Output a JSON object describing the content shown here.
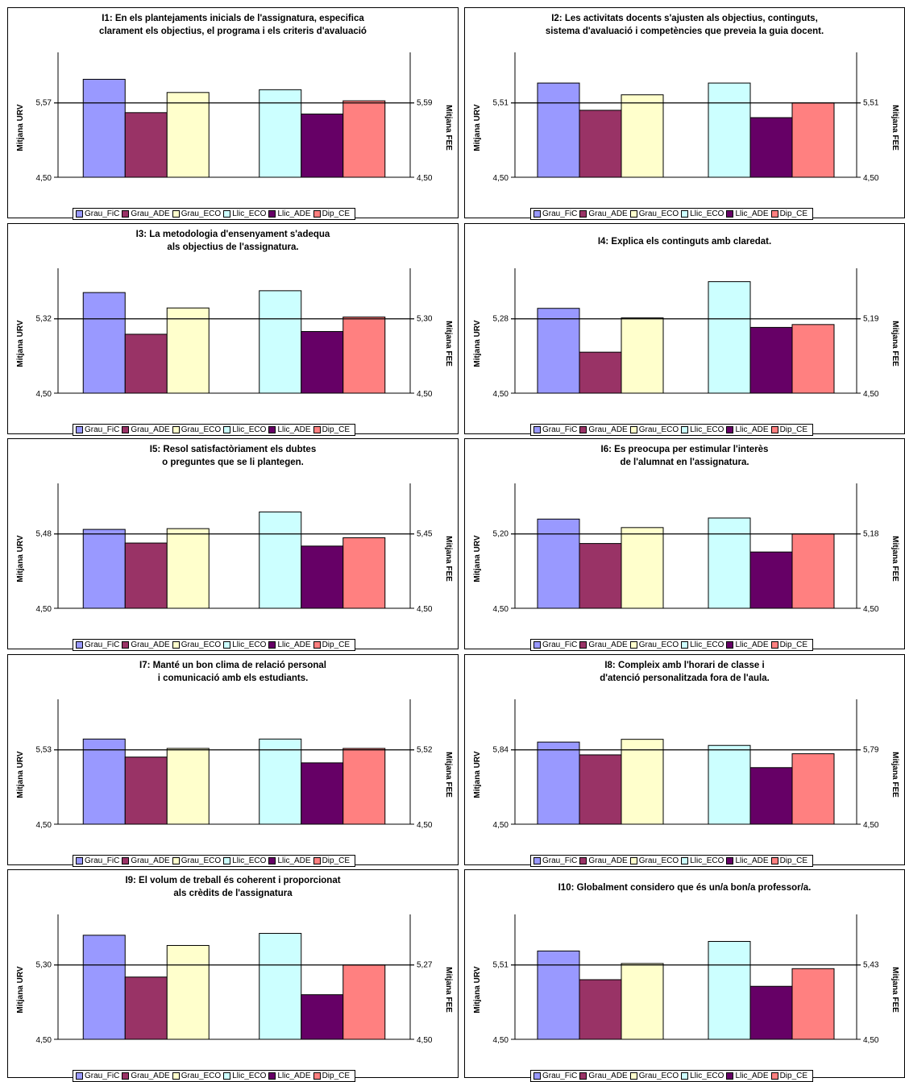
{
  "legend_entries": [
    "Grau_FiC",
    "Grau_ADE",
    "Grau_ECO",
    "Llic_ECO",
    "Llic_ADE",
    "Dip_CE"
  ],
  "series_colors": [
    "#9999ff",
    "#993366",
    "#ffffcc",
    "#ccffff",
    "#660066",
    "#ff8080"
  ],
  "chart_data": [
    {
      "type": "bar",
      "title_lines": [
        "I1: En els plantejaments inicials de l'assignatura, especifica",
        "clarament els objectius, el programa i els criteris d'avaluació"
      ],
      "ylabel": "Mitjana URV",
      "y2label": "Mitjana FEE",
      "ymin": 4.5,
      "ymin_label": "4,50",
      "y2min_label": "4,50",
      "ref_label": "5,57",
      "ref2_label": "5,59",
      "ref_value": 5.57,
      "groups": [
        [
          "Grau_FiC",
          "Grau_ADE",
          "Grau_ECO"
        ],
        [
          "Llic_ECO",
          "Llic_ADE",
          "Dip_CE"
        ]
      ],
      "values": [
        5.91,
        5.43,
        5.72,
        5.76,
        5.41,
        5.6
      ]
    },
    {
      "type": "bar",
      "title_lines": [
        "I2: Les activitats docents s'ajusten als objectius, continguts,",
        "sistema d'avaluació i competències que preveia la guia docent."
      ],
      "ylabel": "Mitjana URV",
      "y2label": "Mitjana FEE",
      "ymin": 4.5,
      "ymin_label": "4,50",
      "y2min_label": "4,50",
      "ref_label": "5,51",
      "ref2_label": "5,51",
      "ref_value": 5.51,
      "groups": [
        [
          "Grau_FiC",
          "Grau_ADE",
          "Grau_ECO"
        ],
        [
          "Llic_ECO",
          "Llic_ADE",
          "Dip_CE"
        ]
      ],
      "values": [
        5.78,
        5.41,
        5.62,
        5.78,
        5.31,
        5.51
      ]
    },
    {
      "type": "bar",
      "title_lines": [
        "I3: La metodologia d'ensenyament s'adequa",
        "als objectius de l'assignatura."
      ],
      "ylabel": "Mitjana URV",
      "y2label": "Mitjana FEE",
      "ymin": 4.5,
      "ymin_label": "4,50",
      "y2min_label": "4,50",
      "ref_label": "5,32",
      "ref2_label": "5,30",
      "ref_value": 5.32,
      "groups": [
        [
          "Grau_FiC",
          "Grau_ADE",
          "Grau_ECO"
        ],
        [
          "Llic_ECO",
          "Llic_ADE",
          "Dip_CE"
        ]
      ],
      "values": [
        5.61,
        5.15,
        5.44,
        5.63,
        5.18,
        5.34
      ]
    },
    {
      "type": "bar",
      "title_lines": [
        "I4: Explica els continguts amb claredat."
      ],
      "ylabel": "Mitjana URV",
      "y2label": "Mitjana FEE",
      "ymin": 4.5,
      "ymin_label": "4,50",
      "y2min_label": "4,50",
      "ref_label": "5,28",
      "ref2_label": "5,19",
      "ref_value": 5.28,
      "groups": [
        [
          "Grau_FiC",
          "Grau_ADE",
          "Grau_ECO"
        ],
        [
          "Llic_ECO",
          "Llic_ADE",
          "Dip_CE"
        ]
      ],
      "values": [
        5.39,
        4.93,
        5.29,
        5.67,
        5.19,
        5.22
      ]
    },
    {
      "type": "bar",
      "title_lines": [
        "I5: Resol satisfactòriament els dubtes",
        "o preguntes que se li plantegen."
      ],
      "ylabel": "Mitjana URV",
      "y2label": "Mitjana FEE",
      "ymin": 4.5,
      "ymin_label": "4,50",
      "y2min_label": "4,50",
      "ref_label": "5,48",
      "ref2_label": "5,45",
      "ref_value": 5.48,
      "groups": [
        [
          "Grau_FiC",
          "Grau_ADE",
          "Grau_ECO"
        ],
        [
          "Llic_ECO",
          "Llic_ADE",
          "Dip_CE"
        ]
      ],
      "values": [
        5.54,
        5.36,
        5.55,
        5.77,
        5.32,
        5.43
      ]
    },
    {
      "type": "bar",
      "title_lines": [
        "I6: Es preocupa per estimular l'interès",
        "de l'alumnat en l'assignatura."
      ],
      "ylabel": "Mitjana URV",
      "y2label": "Mitjana FEE",
      "ymin": 4.5,
      "ymin_label": "4,50",
      "y2min_label": "4,50",
      "ref_label": "5,20",
      "ref2_label": "5,18",
      "ref_value": 5.2,
      "groups": [
        [
          "Grau_FiC",
          "Grau_ADE",
          "Grau_ECO"
        ],
        [
          "Llic_ECO",
          "Llic_ADE",
          "Dip_CE"
        ]
      ],
      "values": [
        5.34,
        5.11,
        5.26,
        5.35,
        5.03,
        5.2
      ]
    },
    {
      "type": "bar",
      "title_lines": [
        "I7: Manté un bon clima de relació personal",
        "i comunicació amb els estudiants."
      ],
      "ylabel": "Mitjana URV",
      "y2label": "Mitjana FEE",
      "ymin": 4.5,
      "ymin_label": "4,50",
      "y2min_label": "4,50",
      "ref_label": "5,53",
      "ref2_label": "5,52",
      "ref_value": 5.53,
      "groups": [
        [
          "Grau_FiC",
          "Grau_ADE",
          "Grau_ECO"
        ],
        [
          "Llic_ECO",
          "Llic_ADE",
          "Dip_CE"
        ]
      ],
      "values": [
        5.68,
        5.43,
        5.55,
        5.68,
        5.35,
        5.55
      ]
    },
    {
      "type": "bar",
      "title_lines": [
        "I8: Compleix amb l'horari de classe i",
        "d'atenció personalitzada fora de l'aula."
      ],
      "ylabel": "Mitjana URV",
      "y2label": "Mitjana FEE",
      "ymin": 4.5,
      "ymin_label": "4,50",
      "y2min_label": "4,50",
      "ref_label": "5,84",
      "ref2_label": "5,79",
      "ref_value": 5.84,
      "groups": [
        [
          "Grau_FiC",
          "Grau_ADE",
          "Grau_ECO"
        ],
        [
          "Llic_ECO",
          "Llic_ADE",
          "Dip_CE"
        ]
      ],
      "values": [
        5.98,
        5.75,
        6.03,
        5.92,
        5.52,
        5.77
      ]
    },
    {
      "type": "bar",
      "title_lines": [
        "I9: El volum de treball és coherent i proporcionat",
        "als crèdits de l'assignatura"
      ],
      "ylabel": "Mitjana URV",
      "y2label": "Mitjana FEE",
      "ymin": 4.5,
      "ymin_label": "4,50",
      "y2min_label": "4,50",
      "ref_label": "5,30",
      "ref2_label": "5,27",
      "ref_value": 5.3,
      "groups": [
        [
          "Grau_FiC",
          "Grau_ADE",
          "Grau_ECO"
        ],
        [
          "Llic_ECO",
          "Llic_ADE",
          "Dip_CE"
        ]
      ],
      "values": [
        5.62,
        5.17,
        5.51,
        5.64,
        4.98,
        5.3
      ]
    },
    {
      "type": "bar",
      "title_lines": [
        "I10: Globalment considero que és un/a bon/a professor/a."
      ],
      "ylabel": "Mitjana URV",
      "y2label": "Mitjana FEE",
      "ymin": 4.5,
      "ymin_label": "4,50",
      "y2min_label": "4,50",
      "ref_label": "5,51",
      "ref2_label": "5,43",
      "ref_value": 5.51,
      "groups": [
        [
          "Grau_FiC",
          "Grau_ADE",
          "Grau_ECO"
        ],
        [
          "Llic_ECO",
          "Llic_ADE",
          "Dip_CE"
        ]
      ],
      "values": [
        5.7,
        5.31,
        5.53,
        5.83,
        5.22,
        5.46
      ]
    }
  ]
}
